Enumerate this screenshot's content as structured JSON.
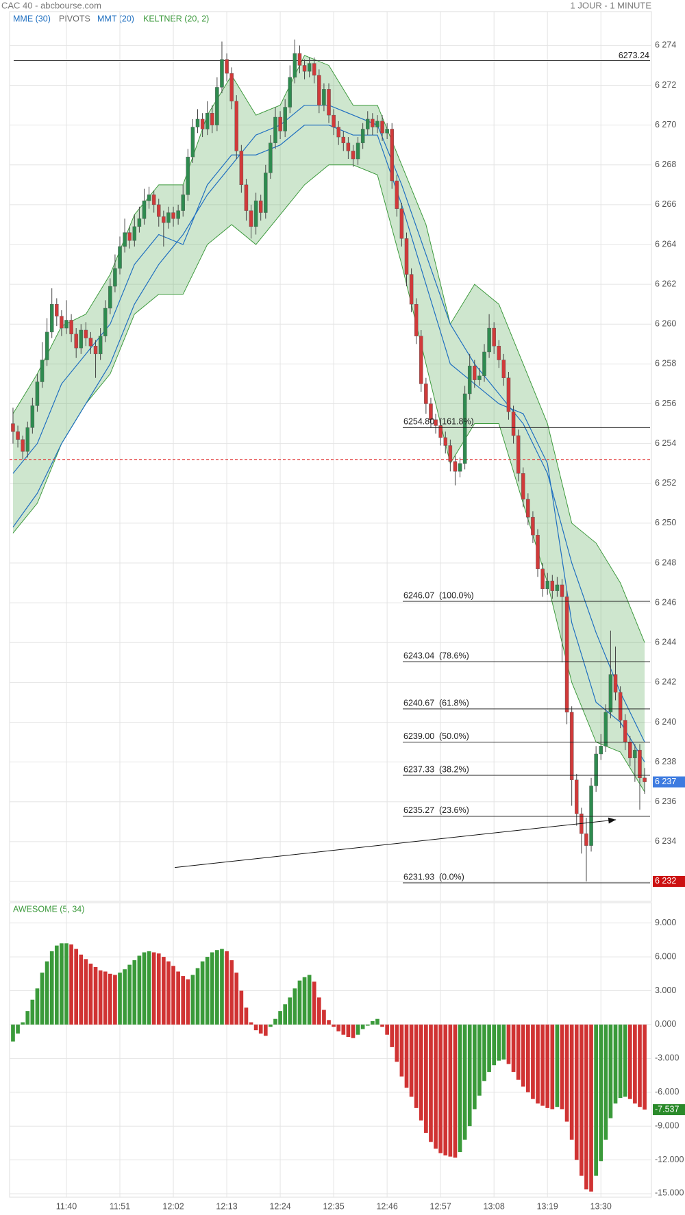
{
  "chart_data": {
    "type": "candlestick",
    "title": "CAC 40 - abcbourse.com",
    "period": "1 JOUR - 1 MINUTE",
    "legend": [
      {
        "label": "MME (30)",
        "color": "#1f6fc0"
      },
      {
        "label": "PIVOTS",
        "color": "#666666"
      },
      {
        "label": "MMT (20)",
        "color": "#1f6fc0"
      },
      {
        "label": "KELTNER (20, 2)",
        "color": "#3d9a3d"
      }
    ],
    "up_color": "#2e8b4f",
    "down_color": "#d03a3a",
    "xlim": [
      688.3,
      820.4
    ],
    "xticks": [
      {
        "value": 700,
        "label": "11:40"
      },
      {
        "value": 711,
        "label": "11:51"
      },
      {
        "value": 722,
        "label": "12:02"
      },
      {
        "value": 733,
        "label": "12:13"
      },
      {
        "value": 744,
        "label": "12:24"
      },
      {
        "value": 755,
        "label": "12:35"
      },
      {
        "value": 766,
        "label": "12:46"
      },
      {
        "value": 777,
        "label": "12:57"
      },
      {
        "value": 788,
        "label": "13:08"
      },
      {
        "value": 799,
        "label": "13:19"
      },
      {
        "value": 810,
        "label": "13:30"
      }
    ],
    "ylim": [
      6231.0,
      6275.7
    ],
    "yticks": [
      {
        "value": 6232,
        "label": "6 232"
      },
      {
        "value": 6234,
        "label": "6 234"
      },
      {
        "value": 6236,
        "label": "6 236"
      },
      {
        "value": 6238,
        "label": "6 238"
      },
      {
        "value": 6240,
        "label": "6 240"
      },
      {
        "value": 6242,
        "label": "6 242"
      },
      {
        "value": 6244,
        "label": "6 244"
      },
      {
        "value": 6246,
        "label": "6 246"
      },
      {
        "value": 6248,
        "label": "6 248"
      },
      {
        "value": 6250,
        "label": "6 250"
      },
      {
        "value": 6252,
        "label": "6 252"
      },
      {
        "value": 6254,
        "label": "6 254"
      },
      {
        "value": 6256,
        "label": "6 256"
      },
      {
        "value": 6258,
        "label": "6 258"
      },
      {
        "value": 6260,
        "label": "6 260"
      },
      {
        "value": 6262,
        "label": "6 262"
      },
      {
        "value": 6264,
        "label": "6 264"
      },
      {
        "value": 6266,
        "label": "6 266"
      },
      {
        "value": 6268,
        "label": "6 268"
      },
      {
        "value": 6270,
        "label": "6 270"
      },
      {
        "value": 6272,
        "label": "6 272"
      },
      {
        "value": 6274,
        "label": "6 274"
      }
    ],
    "grid": true,
    "open": [
      6255.0,
      6254.6,
      6254.2,
      6253.6,
      6254.8,
      6255.9,
      6257.1,
      6258.2,
      6259.6,
      6261.0,
      6260.4,
      6259.8,
      6260.2,
      6259.5,
      6258.8,
      6259.7,
      6259.3,
      6258.9,
      6258.5,
      6259.4,
      6260.8,
      6261.9,
      6262.8,
      6263.9,
      6264.6,
      6264.2,
      6264.9,
      6265.3,
      6266.2,
      6266.5,
      6266.0,
      6265.4,
      6265.1,
      6265.6,
      6265.3,
      6265.7,
      6266.5,
      6268.4,
      6269.9,
      6270.3,
      6269.8,
      6270.6,
      6270.0,
      6271.9,
      6273.3,
      6272.6,
      6271.2,
      6268.7,
      6267.0,
      6265.7,
      6264.9,
      6266.2,
      6265.6,
      6267.6,
      6269.1,
      6270.4,
      6269.7,
      6270.9,
      6272.4,
      6273.6,
      6273.0,
      6272.7,
      6273.1,
      6272.5,
      6271.0,
      6271.8,
      6270.5,
      6269.9,
      6269.4,
      6269.1,
      6268.7,
      6268.3,
      6269.1,
      6269.8,
      6270.3,
      6269.9,
      6270.2,
      6269.6,
      6269.8,
      6267.2,
      6265.8,
      6264.3,
      6262.5,
      6261.0,
      6259.4,
      6257.0,
      6256.0,
      6255.2,
      6254.9,
      6254.3,
      6253.9,
      6253.1,
      6252.6,
      6253.0,
      6256.5,
      6257.9,
      6257.2,
      6257.4,
      6258.6,
      6259.8,
      6258.9,
      6258.2,
      6257.3,
      6255.6,
      6254.4,
      6252.5,
      6251.2,
      6250.3,
      6249.4,
      6247.7,
      6246.7,
      6247.1,
      6246.6,
      6246.9,
      6246.3,
      6240.5,
      6237.1,
      6235.4,
      6234.4,
      6233.8,
      6236.8,
      6238.4,
      6238.8,
      6240.5,
      6242.4,
      6241.5,
      6240.1,
      6239.0,
      6238.2,
      6238.6,
      6237.2
    ],
    "close": [
      6254.6,
      6254.2,
      6253.6,
      6254.8,
      6255.9,
      6257.1,
      6258.2,
      6259.6,
      6261.0,
      6260.4,
      6259.8,
      6260.2,
      6259.5,
      6258.8,
      6259.7,
      6259.3,
      6258.9,
      6258.5,
      6259.4,
      6260.8,
      6261.9,
      6262.8,
      6263.9,
      6264.6,
      6264.2,
      6264.9,
      6265.3,
      6266.2,
      6266.5,
      6266.0,
      6265.4,
      6265.1,
      6265.6,
      6265.3,
      6265.7,
      6266.5,
      6268.4,
      6269.9,
      6270.3,
      6269.8,
      6270.6,
      6270.0,
      6271.9,
      6273.3,
      6272.6,
      6271.2,
      6268.7,
      6267.0,
      6265.7,
      6264.9,
      6266.2,
      6265.6,
      6267.6,
      6269.1,
      6270.4,
      6269.7,
      6270.9,
      6272.4,
      6273.6,
      6273.0,
      6272.7,
      6273.1,
      6272.5,
      6271.0,
      6271.8,
      6270.5,
      6269.9,
      6269.4,
      6269.1,
      6268.7,
      6268.3,
      6269.1,
      6269.8,
      6270.3,
      6269.9,
      6270.2,
      6269.6,
      6269.8,
      6267.2,
      6265.8,
      6264.3,
      6262.5,
      6261.0,
      6259.4,
      6257.0,
      6256.0,
      6255.2,
      6254.9,
      6254.3,
      6253.9,
      6253.1,
      6252.6,
      6253.0,
      6256.5,
      6257.9,
      6257.2,
      6257.4,
      6258.6,
      6259.8,
      6258.9,
      6258.2,
      6257.3,
      6255.6,
      6254.4,
      6252.5,
      6251.2,
      6250.3,
      6249.4,
      6247.7,
      6246.7,
      6247.1,
      6246.6,
      6246.9,
      6246.3,
      6240.5,
      6237.1,
      6235.4,
      6234.4,
      6233.8,
      6236.8,
      6238.4,
      6238.8,
      6240.5,
      6242.4,
      6241.5,
      6240.1,
      6239.0,
      6238.2,
      6238.6,
      6237.2,
      6237.0
    ],
    "high": [
      6255.8,
      6254.9,
      6254.4,
      6255.1,
      6256.3,
      6257.5,
      6259.1,
      6260.3,
      6261.8,
      6261.3,
      6260.7,
      6261.2,
      6260.5,
      6259.8,
      6260.0,
      6260.1,
      6259.6,
      6259.2,
      6259.8,
      6261.2,
      6262.3,
      6263.5,
      6264.4,
      6265.3,
      6264.9,
      6265.5,
      6265.9,
      6266.8,
      6266.9,
      6266.7,
      6266.3,
      6265.7,
      6265.9,
      6265.9,
      6266.0,
      6267.0,
      6268.8,
      6270.3,
      6270.8,
      6270.6,
      6271.2,
      6271.0,
      6272.4,
      6274.2,
      6273.6,
      6272.9,
      6271.5,
      6269.0,
      6267.3,
      6266.0,
      6266.6,
      6266.5,
      6268.0,
      6269.5,
      6270.9,
      6270.7,
      6271.3,
      6273.0,
      6274.3,
      6274.0,
      6273.3,
      6273.4,
      6273.4,
      6272.8,
      6272.1,
      6272.1,
      6270.8,
      6270.2,
      6269.7,
      6269.4,
      6269.0,
      6269.4,
      6270.1,
      6270.7,
      6270.6,
      6270.5,
      6270.5,
      6270.1,
      6270.1,
      6267.5,
      6266.1,
      6264.6,
      6262.8,
      6261.3,
      6259.7,
      6257.3,
      6256.3,
      6255.5,
      6255.2,
      6254.6,
      6254.2,
      6253.4,
      6253.3,
      6256.9,
      6258.5,
      6258.2,
      6257.8,
      6259.0,
      6260.5,
      6260.1,
      6259.2,
      6258.5,
      6257.6,
      6255.9,
      6254.7,
      6252.8,
      6251.5,
      6250.6,
      6249.7,
      6248.0,
      6247.5,
      6247.4,
      6247.3,
      6247.2,
      6246.6,
      6240.8,
      6237.4,
      6235.7,
      6235.2,
      6237.2,
      6238.8,
      6239.4,
      6240.9,
      6244.6,
      6243.8,
      6241.8,
      6240.4,
      6239.3,
      6238.9,
      6238.9,
      6237.7
    ],
    "low": [
      6254.0,
      6253.8,
      6253.2,
      6253.3,
      6254.5,
      6255.6,
      6256.8,
      6257.9,
      6259.3,
      6259.9,
      6259.4,
      6259.5,
      6259.1,
      6258.3,
      6258.5,
      6258.9,
      6258.5,
      6257.3,
      6258.2,
      6259.1,
      6260.5,
      6261.6,
      6262.5,
      6263.6,
      6263.8,
      6263.9,
      6264.6,
      6265.0,
      6265.8,
      6265.6,
      6264.9,
      6263.9,
      6264.8,
      6264.9,
      6265.0,
      6265.4,
      6266.2,
      6268.1,
      6269.6,
      6269.4,
      6269.5,
      6269.6,
      6269.7,
      6271.6,
      6272.2,
      6270.8,
      6268.3,
      6266.6,
      6265.2,
      6264.3,
      6264.5,
      6265.2,
      6265.3,
      6267.3,
      6268.8,
      6269.3,
      6269.4,
      6270.6,
      6272.1,
      6272.6,
      6272.3,
      6272.4,
      6272.1,
      6270.6,
      6270.7,
      6270.1,
      6269.5,
      6269.0,
      6268.7,
      6268.3,
      6267.9,
      6268.0,
      6268.8,
      6269.5,
      6269.5,
      6269.6,
      6269.2,
      6269.3,
      6266.8,
      6265.4,
      6263.9,
      6261.9,
      6260.6,
      6259.0,
      6256.6,
      6255.5,
      6254.8,
      6254.5,
      6253.9,
      6253.5,
      6252.6,
      6251.9,
      6252.3,
      6252.7,
      6256.2,
      6256.8,
      6256.9,
      6257.1,
      6258.3,
      6258.5,
      6257.8,
      6256.9,
      6255.2,
      6254.0,
      6252.1,
      6250.8,
      6249.9,
      6249.0,
      6247.3,
      6246.3,
      6246.4,
      6246.2,
      6246.3,
      6243.0,
      6239.9,
      6235.8,
      6234.8,
      6233.4,
      6232.0,
      6233.5,
      6236.5,
      6238.1,
      6238.5,
      6240.2,
      6241.1,
      6239.7,
      6238.6,
      6237.8,
      6237.0,
      6235.6,
      6236.4
    ],
    "indicators": {
      "x": [
        689,
        694,
        699,
        704,
        709,
        714,
        719,
        724,
        729,
        734,
        739,
        744,
        749,
        754,
        759,
        764,
        769,
        774,
        779,
        784,
        789,
        794,
        799,
        804,
        809,
        814,
        819
      ],
      "keltner_upper": [
        6255.5,
        6257.5,
        6259.9,
        6260.5,
        6262.5,
        6265.5,
        6267.0,
        6267.0,
        6270.5,
        6272.5,
        6270.5,
        6271.0,
        6273.5,
        6273.0,
        6271.0,
        6271.0,
        6268.0,
        6265.0,
        6260.0,
        6262.0,
        6261.0,
        6258.0,
        6255.0,
        6250.0,
        6249.0,
        6247.0,
        6244.0
      ],
      "keltner_lower": [
        6249.5,
        6251.0,
        6254.0,
        6256.0,
        6257.5,
        6260.5,
        6261.5,
        6261.5,
        6264.0,
        6265.0,
        6264.0,
        6265.5,
        6267.0,
        6268.0,
        6268.0,
        6267.5,
        6263.0,
        6258.0,
        6253.0,
        6255.0,
        6255.0,
        6251.0,
        6247.0,
        6242.0,
        6239.0,
        6238.5,
        6236.5
      ],
      "mme": [
        6249.8,
        6251.5,
        6254.0,
        6256.0,
        6258.0,
        6261.0,
        6263.0,
        6264.5,
        6266.5,
        6268.0,
        6269.5,
        6270.0,
        6271.0,
        6271.0,
        6270.5,
        6270.0,
        6267.0,
        6263.5,
        6260.0,
        6258.0,
        6256.5,
        6255.0,
        6252.5,
        6248.0,
        6244.5,
        6241.5,
        6239.0
      ],
      "mmt": [
        6252.5,
        6254.0,
        6257.0,
        6258.5,
        6260.0,
        6263.0,
        6264.5,
        6264.0,
        6267.0,
        6268.5,
        6268.5,
        6269.0,
        6270.0,
        6270.0,
        6269.5,
        6269.5,
        6266.0,
        6262.0,
        6258.0,
        6257.0,
        6256.0,
        6255.5,
        6253.0,
        6245.0,
        6241.0,
        6240.0,
        6238.0
      ]
    },
    "resistance": {
      "value": 6273.24,
      "label": "6273.24"
    },
    "pivot": 6253.2,
    "fib": [
      {
        "value": 6254.8,
        "label": "6254.80",
        "pct": "(161.8%)"
      },
      {
        "value": 6246.07,
        "label": "6246.07",
        "pct": "(100.0%)"
      },
      {
        "value": 6243.04,
        "label": "6243.04",
        "pct": "(78.6%)"
      },
      {
        "value": 6240.67,
        "label": "6240.67",
        "pct": "(61.8%)"
      },
      {
        "value": 6239.0,
        "label": "6239.00",
        "pct": "(50.0%)"
      },
      {
        "value": 6237.33,
        "label": "6237.33",
        "pct": "(38.2%)"
      },
      {
        "value": 6235.27,
        "label": "6235.27",
        "pct": "(23.6%)"
      },
      {
        "value": 6231.93,
        "label": "6231.93",
        "pct": "(0.0%)"
      }
    ],
    "trendline": {
      "x": [
        722.3,
        813.1
      ],
      "y": [
        6232.7,
        6235.1
      ]
    },
    "markers": [
      {
        "value": 6237,
        "label": "6 237",
        "color": "#3d7be0"
      },
      {
        "value": 6232,
        "label": "6 232",
        "color": "#cc1111"
      }
    ],
    "ao": {
      "type": "bar",
      "title": "AWESOME (5, 34)",
      "up_color": "#3a9a3a",
      "down_color": "#d03333",
      "marker_color": "#2a8a2a",
      "ylim": [
        -15.3,
        10.8
      ],
      "yticks": [
        {
          "value": 9,
          "label": "9.000"
        },
        {
          "value": 6,
          "label": "6.000"
        },
        {
          "value": 3,
          "label": "3.000"
        },
        {
          "value": 0,
          "label": "0.000"
        },
        {
          "value": -3,
          "label": "-3.000"
        },
        {
          "value": -6,
          "label": "-6.000"
        },
        {
          "value": -9,
          "label": "-9.000"
        },
        {
          "value": -12,
          "label": "-12.000"
        },
        {
          "value": -15,
          "label": "-15.000"
        }
      ],
      "values": [
        -1.5,
        -0.8,
        0.2,
        1.2,
        2.2,
        3.2,
        4.6,
        5.6,
        6.5,
        7.0,
        7.2,
        7.2,
        7.1,
        6.7,
        6.2,
        5.8,
        5.4,
        5.1,
        4.8,
        4.7,
        4.5,
        4.4,
        4.6,
        4.9,
        5.3,
        5.7,
        6.1,
        6.4,
        6.5,
        6.4,
        6.3,
        6.0,
        5.6,
        5.2,
        4.7,
        4.3,
        4.0,
        4.4,
        5.0,
        5.6,
        6.0,
        6.4,
        6.6,
        6.7,
        6.5,
        5.7,
        4.6,
        3.0,
        1.5,
        0.2,
        -0.5,
        -0.8,
        -1.0,
        -0.2,
        0.5,
        1.2,
        1.8,
        2.4,
        3.2,
        3.9,
        4.2,
        4.4,
        3.8,
        2.4,
        1.3,
        0.4,
        -0.2,
        -0.6,
        -0.9,
        -1.1,
        -1.2,
        -0.9,
        -0.4,
        -0.1,
        0.3,
        0.5,
        -0.2,
        -0.9,
        -2.0,
        -3.3,
        -4.6,
        -5.6,
        -6.4,
        -7.4,
        -8.5,
        -9.6,
        -10.4,
        -11.0,
        -11.4,
        -11.6,
        -11.7,
        -11.8,
        -11.3,
        -10.2,
        -9.0,
        -7.5,
        -6.3,
        -5.0,
        -4.2,
        -3.6,
        -3.2,
        -3.1,
        -3.5,
        -4.2,
        -4.9,
        -5.5,
        -6.0,
        -6.6,
        -7.0,
        -7.2,
        -7.4,
        -7.5,
        -7.3,
        -7.5,
        -8.6,
        -10.2,
        -12.0,
        -13.4,
        -14.6,
        -14.8,
        -13.4,
        -12.1,
        -10.2,
        -8.3,
        -7.0,
        -6.5,
        -6.4,
        -6.6,
        -7.0,
        -7.3,
        -7.537
      ]
    }
  }
}
